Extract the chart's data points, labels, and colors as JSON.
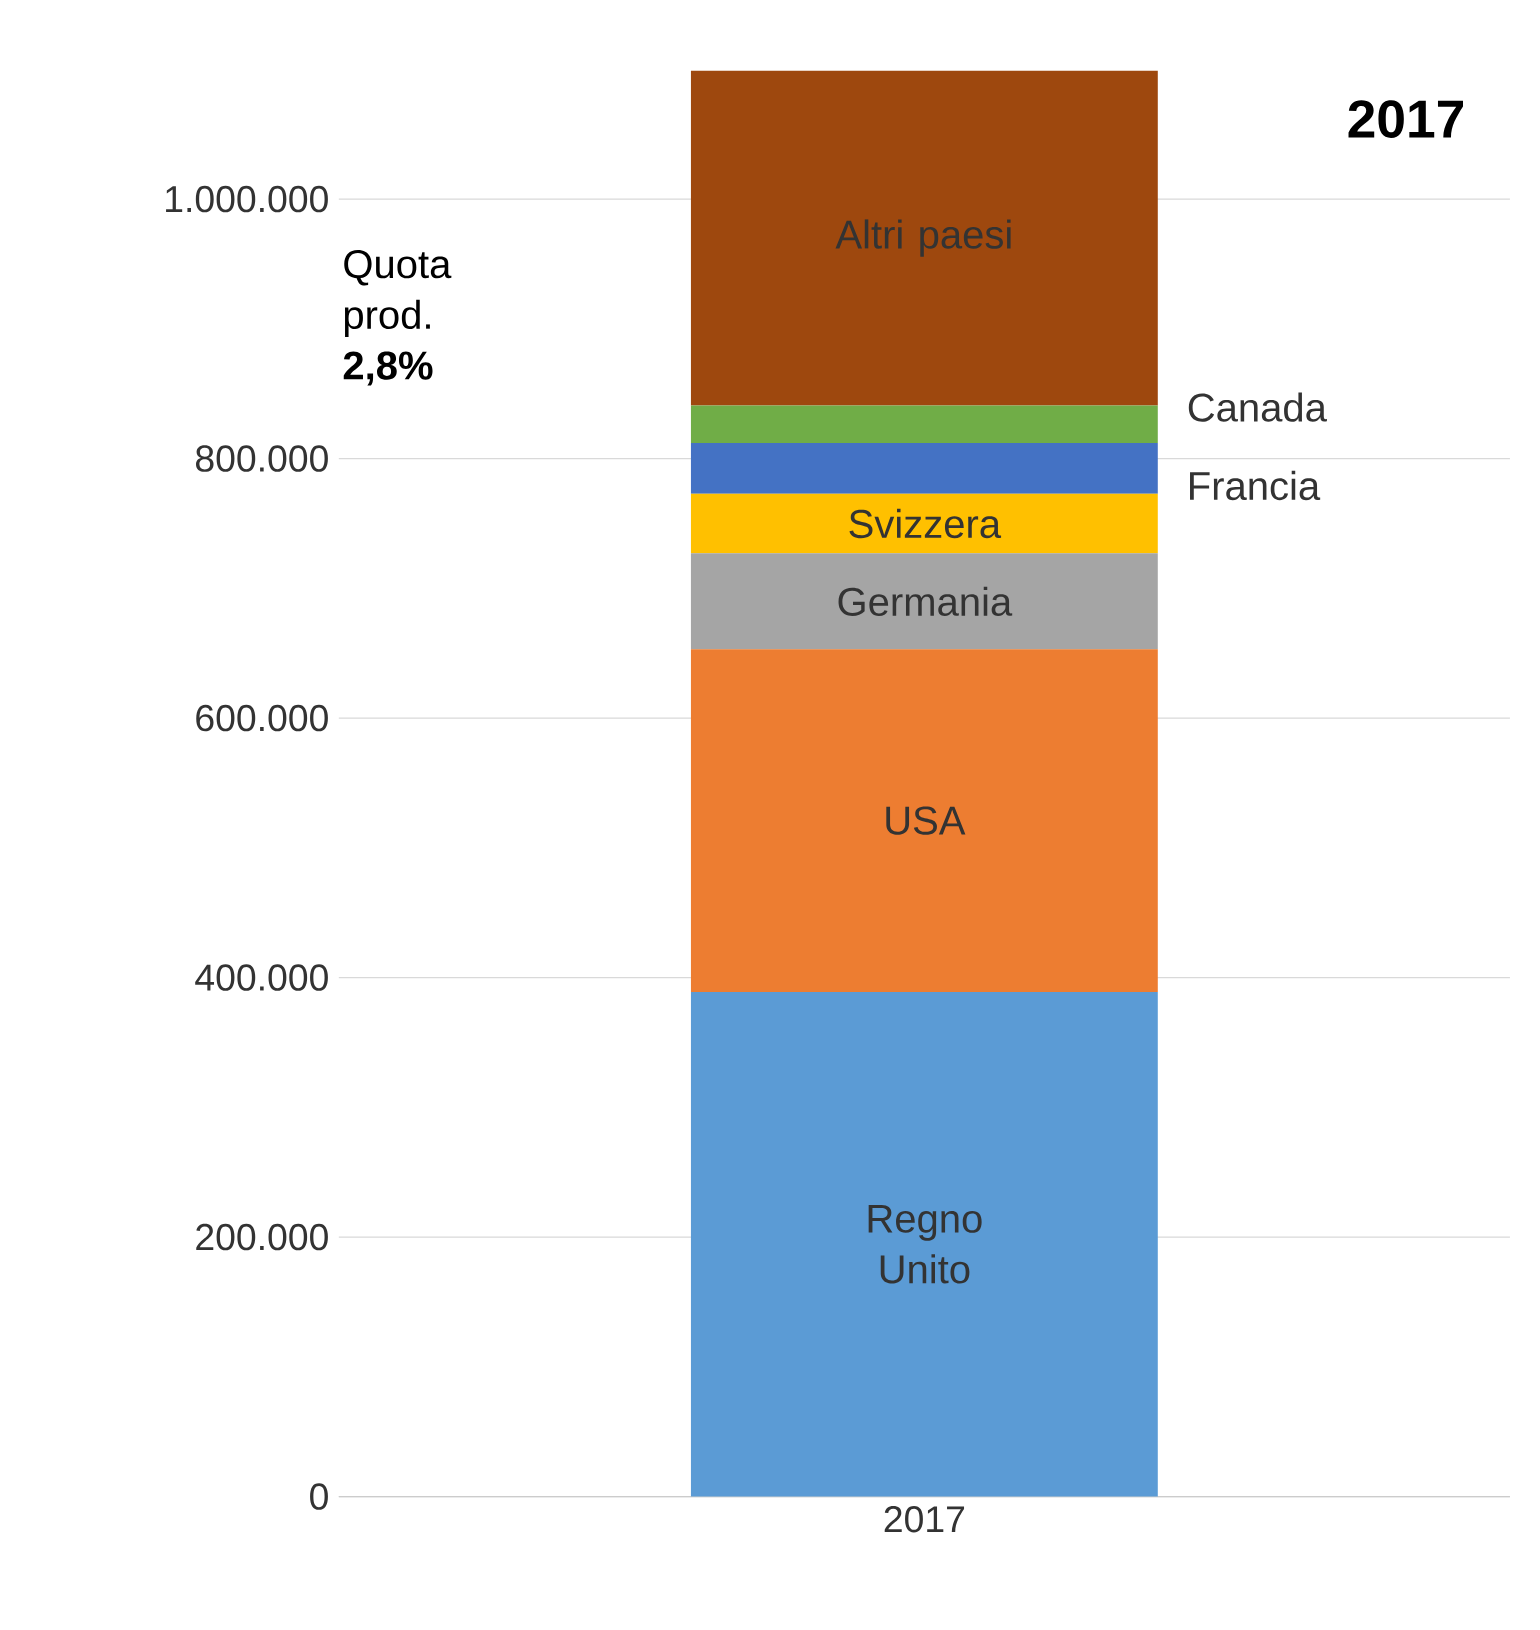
{
  "chart_data": {
    "type": "bar",
    "stacked": true,
    "title": "2017",
    "categories": [
      "2017"
    ],
    "series": [
      {
        "name": "Regno Unito",
        "color": "#5b9bd5",
        "values": [
          389000
        ]
      },
      {
        "name": "USA",
        "color": "#ed7d31",
        "values": [
          264000
        ]
      },
      {
        "name": "Germania",
        "color": "#a5a5a5",
        "values": [
          74000
        ]
      },
      {
        "name": "Svizzera",
        "color": "#ffc000",
        "values": [
          46000
        ]
      },
      {
        "name": "Francia",
        "color": "#4472c4",
        "values": [
          39000
        ]
      },
      {
        "name": "Canada",
        "color": "#70ad47",
        "values": [
          29000
        ]
      },
      {
        "name": "Altri paesi",
        "color": "#9e480e",
        "values": [
          258000
        ]
      }
    ],
    "ylim": [
      0,
      1100000
    ],
    "yticks": [
      0,
      {
        "value": 200000,
        "label": "200.000"
      },
      {
        "value": 400000,
        "label": "400.000"
      },
      {
        "value": 600000,
        "label": "600.000"
      },
      {
        "value": 800000,
        "label": "800.000"
      },
      {
        "value": 1000000,
        "label": "1.000.000"
      }
    ],
    "grid": "y",
    "legend": false,
    "annotations": [
      "Quota prod. **2,8%**"
    ]
  }
}
